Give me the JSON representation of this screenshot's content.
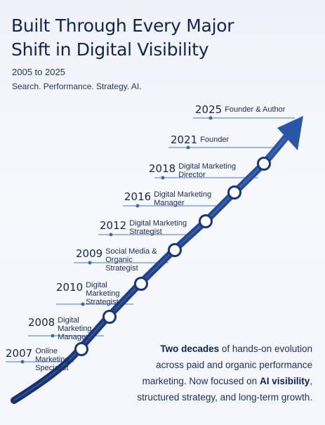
{
  "header": {
    "title_line1": "Built Through Every Major",
    "title_line2": "Shift in Digital Visibility",
    "years": "2005 to 2025",
    "tagline": "Search. Performance. Strategy. AI."
  },
  "milestones": [
    {
      "year": "2007",
      "role": [
        "Online",
        "Marketing",
        "Specialist"
      ]
    },
    {
      "year": "2008",
      "role": [
        "Digital",
        "Marketing",
        "Manager"
      ]
    },
    {
      "year": "2010",
      "role": [
        "Digital",
        "Marketing",
        "Strategist"
      ]
    },
    {
      "year": "2009",
      "role": [
        "Social Media &",
        "Organic",
        "Strategist"
      ]
    },
    {
      "year": "2012",
      "role": [
        "Digital Marketing",
        "Strategist"
      ]
    },
    {
      "year": "2016",
      "role": [
        "Digital Marketing",
        "Manager"
      ]
    },
    {
      "year": "2018",
      "role": [
        "Digital Marketing",
        "Director"
      ]
    },
    {
      "year": "2021",
      "role": [
        "Founder"
      ]
    },
    {
      "year": "2025",
      "role": [
        "Founder & Author"
      ]
    }
  ],
  "summary": {
    "p1_bold": "Two decades",
    "p1_rest": " of hands-on evolution",
    "p2": "across paid and organic performance",
    "p3_start": "marketing. Now focused on ",
    "p3_bold": "AI visibility",
    "p3_end": ",",
    "p4": "structured strategy, and long-term growth."
  },
  "colors": {
    "accent": "#1f3f86",
    "dark": "#142450",
    "leader": "#3a6bb5"
  }
}
